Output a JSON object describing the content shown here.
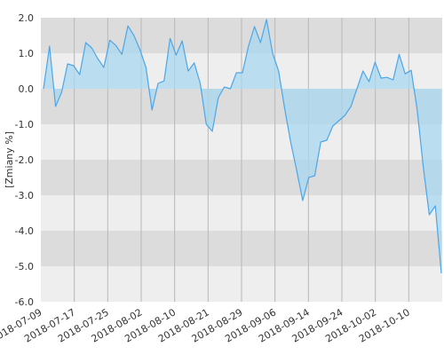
{
  "chart_data": {
    "type": "area",
    "ylabel": "[Zmiany %]",
    "xlabel": "",
    "title": "",
    "ylim": [
      -6.0,
      2.0
    ],
    "yticks": [
      "2.0",
      "1.0",
      "0.0",
      "-1.0",
      "-2.0",
      "-3.0",
      "-4.0",
      "-5.0",
      "-6.0"
    ],
    "xticks": [
      "2018-07-09",
      "2018-07-17",
      "2018-07-25",
      "2018-08-02",
      "2018-08-10",
      "2018-08-21",
      "2018-08-29",
      "2018-09-06",
      "2018-09-14",
      "2018-09-24",
      "2018-10-02",
      "2018-10-10"
    ],
    "grid": true,
    "series": [
      {
        "values": [
          0.0,
          1.2,
          -0.5,
          -0.1,
          0.7,
          0.65,
          0.4,
          1.3,
          1.15,
          0.85,
          0.6,
          1.37,
          1.22,
          0.97,
          1.77,
          1.5,
          1.1,
          0.6,
          -0.6,
          0.15,
          0.22,
          1.42,
          0.95,
          1.35,
          0.5,
          0.73,
          0.15,
          -1.0,
          -1.2,
          -0.25,
          0.05,
          0.0,
          0.45,
          0.45,
          1.2,
          1.75,
          1.3,
          1.95,
          1.0,
          0.5,
          -0.55,
          -1.5,
          -2.3,
          -3.15,
          -2.5,
          -2.45,
          -1.5,
          -1.45,
          -1.05,
          -0.9,
          -0.75,
          -0.5,
          0.0,
          0.5,
          0.2,
          0.75,
          0.3,
          0.32,
          0.25,
          0.97,
          0.42,
          0.52,
          -0.6,
          -2.2,
          -3.55,
          -3.3,
          -5.2
        ]
      }
    ],
    "colors": {
      "line": "#4da6e8",
      "fill": "#a8d8ef",
      "band_dark": "#dcdcdc",
      "band_light": "#eeeeee",
      "vgrid": "#b8b8b8"
    }
  }
}
